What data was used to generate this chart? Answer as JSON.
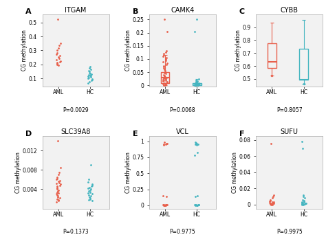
{
  "panels": [
    {
      "label": "A",
      "title": "ITGAM",
      "pvalue": "P=0.0029",
      "aml_data": [
        0.525,
        0.35,
        0.335,
        0.315,
        0.3,
        0.285,
        0.275,
        0.265,
        0.255,
        0.245,
        0.235,
        0.225,
        0.22,
        0.215,
        0.21,
        0.205,
        0.2,
        0.195
      ],
      "hc_data": [
        0.185,
        0.175,
        0.165,
        0.155,
        0.148,
        0.14,
        0.135,
        0.13,
        0.127,
        0.122,
        0.118,
        0.113,
        0.108,
        0.103,
        0.1,
        0.096,
        0.09,
        0.085,
        0.076,
        0.065
      ],
      "ylim": [
        0.04,
        0.56
      ],
      "yticks": [
        0.1,
        0.2,
        0.3,
        0.4,
        0.5
      ],
      "has_box": false,
      "row": 0,
      "col": 0
    },
    {
      "label": "B",
      "title": "CAMK4",
      "pvalue": "P=0.0068",
      "aml_data": [
        0.25,
        0.205,
        0.13,
        0.125,
        0.12,
        0.115,
        0.11,
        0.105,
        0.1,
        0.095,
        0.09,
        0.085,
        0.08,
        0.075,
        0.07,
        0.065,
        0.06,
        0.055,
        0.05,
        0.047,
        0.044,
        0.041,
        0.038,
        0.035,
        0.032,
        0.03,
        0.028,
        0.026,
        0.024,
        0.022,
        0.02,
        0.018,
        0.016,
        0.014,
        0.012,
        0.01,
        0.008,
        0.006,
        0.004,
        0.002,
        0.0
      ],
      "hc_data": [
        0.25,
        0.205,
        0.025,
        0.018,
        0.016,
        0.014,
        0.012,
        0.01,
        0.009,
        0.008,
        0.007,
        0.006,
        0.005,
        0.004,
        0.003,
        0.002,
        0.001,
        0.0,
        0.0,
        0.0,
        0.0,
        0.0,
        0.0,
        0.0
      ],
      "ylim": [
        -0.005,
        0.27
      ],
      "yticks": [
        0.0,
        0.05,
        0.1,
        0.15,
        0.2,
        0.25
      ],
      "has_box": true,
      "aml_whisker_low": 0.0,
      "aml_q1": 0.01,
      "aml_median": 0.03,
      "aml_q3": 0.05,
      "aml_whisker_high": 0.115,
      "hc_whisker_low": 0.0,
      "hc_q1": 0.001,
      "hc_median": 0.005,
      "hc_q3": 0.01,
      "hc_whisker_high": 0.025,
      "row": 0,
      "col": 1
    },
    {
      "label": "C",
      "title": "CYBB",
      "pvalue": "P=0.8057",
      "aml_data": [],
      "hc_data": [],
      "ylim": [
        0.44,
        1.0
      ],
      "yticks": [
        0.5,
        0.6,
        0.7,
        0.8,
        0.9
      ],
      "has_box": true,
      "aml_whisker_low": 0.525,
      "aml_q1": 0.585,
      "aml_median": 0.63,
      "aml_q3": 0.775,
      "aml_whisker_high": 0.935,
      "hc_whisker_low": 0.465,
      "hc_q1": 0.495,
      "hc_median": 0.495,
      "hc_q3": 0.735,
      "hc_whisker_high": 0.955,
      "aml_outliers_low": [
        0.525
      ],
      "aml_outliers_high": [],
      "hc_outliers_low": [
        0.465
      ],
      "hc_outliers_high": [],
      "row": 0,
      "col": 2
    },
    {
      "label": "D",
      "title": "SLC39A8",
      "pvalue": "P=0.1373",
      "aml_data": [
        0.014,
        0.0085,
        0.0075,
        0.007,
        0.0065,
        0.0062,
        0.006,
        0.0058,
        0.0056,
        0.0054,
        0.0052,
        0.005,
        0.0048,
        0.0046,
        0.0044,
        0.0042,
        0.004,
        0.0038,
        0.0036,
        0.0034,
        0.0032,
        0.003,
        0.0028,
        0.0026,
        0.0024,
        0.0022,
        0.002,
        0.0018,
        0.0016,
        0.0014
      ],
      "hc_data": [
        0.009,
        0.006,
        0.0055,
        0.005,
        0.0048,
        0.0046,
        0.0044,
        0.0042,
        0.004,
        0.0038,
        0.0036,
        0.0034,
        0.0032,
        0.003,
        0.0028,
        0.0026,
        0.0024,
        0.0022,
        0.002,
        0.0018,
        0.0016
      ],
      "ylim": [
        0.0,
        0.015
      ],
      "yticks": [
        0.004,
        0.008,
        0.012
      ],
      "has_box": false,
      "row": 1,
      "col": 0
    },
    {
      "label": "E",
      "title": "VCL",
      "pvalue": "P=0.9775",
      "aml_data": [
        0.98,
        0.965,
        0.96,
        0.955,
        0.95,
        0.945,
        0.15,
        0.14,
        0.015,
        0.013,
        0.012,
        0.01,
        0.008,
        0.006,
        0.005,
        0.004,
        0.003,
        0.002,
        0.001,
        0.0,
        0.0
      ],
      "hc_data": [
        0.985,
        0.975,
        0.965,
        0.96,
        0.955,
        0.95,
        0.945,
        0.82,
        0.78,
        0.15,
        0.14,
        0.015,
        0.012,
        0.01,
        0.008,
        0.006,
        0.005,
        0.004,
        0.003,
        0.001,
        0.0
      ],
      "ylim": [
        -0.05,
        1.08
      ],
      "yticks": [
        0.0,
        0.25,
        0.5,
        0.75,
        1.0
      ],
      "has_box": false,
      "row": 1,
      "col": 1
    },
    {
      "label": "F",
      "title": "SUFU",
      "pvalue": "P=0.9975",
      "aml_data": [
        0.076,
        0.012,
        0.01,
        0.008,
        0.006,
        0.005,
        0.004,
        0.0035,
        0.003,
        0.0025,
        0.002,
        0.0018,
        0.0016,
        0.0014,
        0.0012,
        0.001,
        0.0008,
        0.0006,
        0.0004,
        0.0002,
        0.0
      ],
      "hc_data": [
        0.078,
        0.07,
        0.012,
        0.01,
        0.008,
        0.006,
        0.005,
        0.004,
        0.0035,
        0.003,
        0.0025,
        0.002,
        0.0018,
        0.0016,
        0.0014,
        0.0012,
        0.001,
        0.0008,
        0.0006,
        0.0004,
        0.0002,
        0.0
      ],
      "ylim": [
        -0.005,
        0.085
      ],
      "yticks": [
        0.0,
        0.02,
        0.04,
        0.06,
        0.08
      ],
      "has_box": false,
      "row": 1,
      "col": 2
    }
  ],
  "aml_color": "#E8604C",
  "hc_color": "#45B5C0",
  "background_color": "#F2F2F2",
  "jitter_seed": 42
}
